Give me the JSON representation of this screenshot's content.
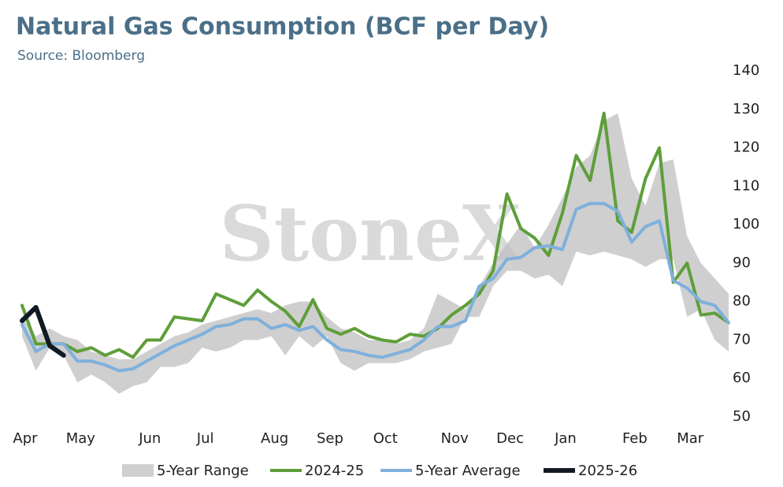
{
  "chart_data": {
    "type": "line",
    "title": "Natural Gas Consumption (BCF per Day)",
    "subtitle": "Source: Bloomberg",
    "watermark": "StoneX",
    "categories": [
      "Apr",
      null,
      null,
      null,
      "May",
      null,
      null,
      null,
      null,
      "Jun",
      null,
      null,
      null,
      "Jul",
      null,
      null,
      null,
      null,
      "Aug",
      null,
      null,
      null,
      "Sep",
      null,
      null,
      null,
      "Oct",
      null,
      null,
      null,
      null,
      "Nov",
      null,
      null,
      null,
      "Dec",
      null,
      null,
      null,
      "Jan",
      null,
      null,
      null,
      null,
      "Feb",
      null,
      null,
      null,
      "Mar",
      null,
      null,
      null
    ],
    "ylim": [
      50,
      140
    ],
    "yticks": [
      50,
      60,
      70,
      80,
      90,
      100,
      110,
      120,
      130,
      140
    ],
    "series": [
      {
        "name": "5-Year Range",
        "color": "#cfcfcf",
        "high": [
          76,
          71,
          73,
          71,
          70,
          67,
          66,
          65,
          65,
          67,
          69,
          71,
          72,
          74,
          75,
          76,
          77,
          78,
          77,
          79,
          80,
          80,
          76,
          73,
          72,
          70,
          70,
          69,
          70,
          73,
          82,
          80,
          78,
          84,
          90,
          95,
          100,
          94,
          100,
          107,
          115,
          118,
          127,
          129,
          112,
          105,
          116,
          117,
          97,
          90,
          86,
          82
        ],
        "low": [
          71,
          62,
          68,
          66,
          59,
          61,
          59,
          56,
          58,
          59,
          63,
          63,
          64,
          68,
          67,
          68,
          70,
          70,
          71,
          66,
          71,
          68,
          71,
          64,
          62,
          64,
          64,
          64,
          65,
          67,
          68,
          69,
          76,
          76,
          84,
          88,
          88,
          86,
          87,
          84,
          93,
          92,
          93,
          92,
          91,
          89,
          91,
          91,
          76,
          78,
          70,
          67
        ]
      },
      {
        "name": "2024-25",
        "color": "#5e9e3a",
        "values": [
          79,
          69,
          69,
          69,
          67,
          68,
          66,
          67.5,
          65.5,
          70,
          70,
          76,
          75.5,
          75,
          82,
          80.5,
          79,
          83,
          80,
          77.5,
          73.5,
          80.5,
          73,
          71.5,
          73,
          71,
          70,
          69.5,
          71.5,
          71,
          73,
          76.5,
          79,
          82,
          88,
          108,
          99,
          96.5,
          92,
          103,
          118,
          111.5,
          129,
          101,
          98,
          112,
          120,
          85,
          90,
          76.5,
          77,
          74.5
        ]
      },
      {
        "name": "5-Year Average",
        "color": "#7fb0dc",
        "values": [
          74,
          67,
          69,
          69,
          64.5,
          64.5,
          63.5,
          62,
          62.5,
          64.5,
          66.5,
          68.5,
          70,
          71.5,
          73.5,
          74,
          75.5,
          75.5,
          73,
          74,
          72.5,
          73.5,
          70,
          67.5,
          67,
          66,
          65.5,
          66.5,
          67.5,
          70,
          73.5,
          73.5,
          75,
          84,
          86,
          91,
          91.5,
          94,
          94.5,
          93.5,
          104,
          105.5,
          105.5,
          103.5,
          95.5,
          99.5,
          101,
          85.5,
          83.5,
          80,
          79,
          74.5
        ]
      },
      {
        "name": "2025-26",
        "color": "#111a22",
        "values": [
          75,
          78.5,
          68.5,
          66,
          null,
          null,
          null,
          null,
          null,
          null,
          null,
          null,
          null,
          null,
          null,
          null,
          null,
          null,
          null,
          null,
          null,
          null,
          null,
          null,
          null,
          null,
          null,
          null,
          null,
          null,
          null,
          null,
          null,
          null,
          null,
          null,
          null,
          null,
          null,
          null,
          null,
          null,
          null,
          null,
          null,
          null,
          null,
          null,
          null,
          null,
          null,
          null
        ]
      }
    ]
  }
}
